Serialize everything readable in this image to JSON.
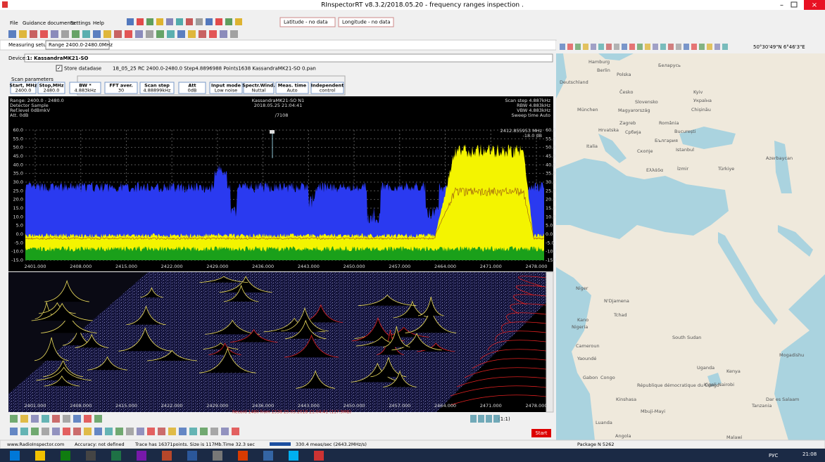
{
  "window": {
    "title": "RInspectorRT v8.3.2/2018.05.20 - frequency ranges inspection ."
  },
  "menu": [
    "File",
    "Guidance documents",
    "Settings",
    "Help"
  ],
  "coords": {
    "latitude": "Latitude - no data",
    "longitude": "Longitude - no data"
  },
  "tabs": [
    "Measuring setup",
    "Range 2400.0-2480.0MHz"
  ],
  "device": {
    "label": "Device:",
    "name": "1: KassandraMK21-SO"
  },
  "store": {
    "checkbox": "Store datadase",
    "file": "18_05_25 RC 2400.0-2480.0 Step4.8896988 Points1638 KassandraMK21-SO 0.pan"
  },
  "scan": {
    "title": "Scan parameters",
    "params": [
      [
        "Start, MHz",
        "2400.0"
      ],
      [
        "Stop,MHz",
        "2480.0"
      ],
      [
        "BW *",
        "4.883kHz"
      ],
      [
        "FFT aver.",
        "30"
      ],
      [
        "Scan step",
        "4.88899kHz"
      ],
      [
        "Att",
        "0dB"
      ],
      [
        "Input mode",
        "Low noise"
      ],
      [
        "Spectr.Wind.",
        "Nuttal"
      ],
      [
        "Meas. time",
        "Auto"
      ],
      [
        "Independent",
        "control"
      ]
    ]
  },
  "spectrum": {
    "info_left": [
      "Range: 2400.0 - 2480.0",
      "Detector Sample",
      "Ref.level 0dBmkV",
      "Att. 0dB"
    ],
    "info_center": [
      "KassandraMK21-SO N1",
      "2018.05.25 21:04:41",
      "/7108"
    ],
    "info_right": [
      "Scan step  4.887kHz",
      "RBW  4.883kHz",
      "VBW  4.883kHz",
      "Sweep time  Auto"
    ],
    "marker": "2412.855953 MHz",
    "marker_level": "-18.0 dB",
    "yticks": [
      "60.0",
      "55.0",
      "50.0",
      "45.0",
      "40.0",
      "35.0",
      "30.0",
      "25.0",
      "20.0",
      "15.0",
      "10.0",
      "5.0",
      "0.0",
      "-5.0",
      "-10.0",
      "-15.0"
    ],
    "xticks": [
      "2401.000",
      "2408.000",
      "2415.000",
      "2422.000",
      "2429.000",
      "2436.000",
      "2443.000",
      "2450.000",
      "2457.000",
      "2464.000",
      "2471.000",
      "2478.000"
    ]
  },
  "waterfall": {
    "record": "Record 1480  from 1538   25.05.2018 21:04:41 (117.9MB)"
  },
  "playback": {
    "ratio": "(1:1)",
    "start": "Start"
  },
  "status": [
    "www.RadioInspector.com",
    "Accuracy: not defined",
    "Trace has 16371points. Size is 117Mb.Time 32.3 sec",
    "330.4 meas/sec (2643.2MHz/s)",
    "Package N 5262"
  ],
  "map": {
    "coords": "50°30'49\"N 6°46'3\"E",
    "labels": [
      "Hamburg",
      "Berlin",
      "Polska",
      "Беларусь",
      "Deutschland",
      "Česko",
      "Kyiv",
      "Slovensko",
      "Україна",
      "München",
      "Magyarország",
      "Chișinău",
      "Zagreb",
      "România",
      "Hrvatska",
      "Србија",
      "București",
      "Italia",
      "България",
      "Istanbul",
      "Скопје",
      "Ελλάδα",
      "İzmir",
      "Türkiye",
      "Azerbaycan",
      "Niger",
      "Tchad",
      "N'Djamena",
      "Kano",
      "Nigeria",
      "South Sudan",
      "Cameroun",
      "Yaoundé",
      "Gabon",
      "Congo",
      "République démocratique du Congo",
      "Kinshasa",
      "Uganda",
      "Kenya",
      "Kigali",
      "Nairobi",
      "Mogadishu",
      "Tanzania",
      "Dar es Salaam",
      "Luanda",
      "Angola",
      "Malawi",
      "Mbuji-Mayi"
    ]
  },
  "taskbar": {
    "lang": "РУС",
    "time": "21:08"
  }
}
